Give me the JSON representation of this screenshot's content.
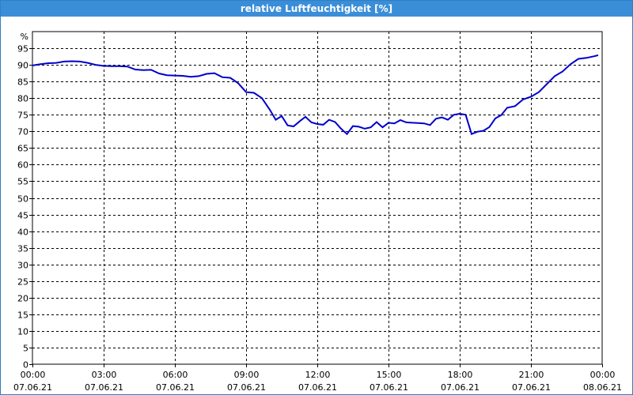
{
  "window": {
    "title": "relative Luftfeuchtigkeit [%]"
  },
  "chart_data": {
    "type": "line",
    "title": "relative Luftfeuchtigkeit [%]",
    "ylabel": "%",
    "ylim": [
      0,
      100
    ],
    "yticks": [
      0,
      5,
      10,
      15,
      20,
      25,
      30,
      35,
      40,
      45,
      50,
      55,
      60,
      65,
      70,
      75,
      80,
      85,
      90,
      95
    ],
    "xlim": [
      "07.06.21 00:00",
      "08.06.21 00:00"
    ],
    "xticks": [
      {
        "time": "00:00",
        "date": "07.06.21"
      },
      {
        "time": "03:00",
        "date": "07.06.21"
      },
      {
        "time": "06:00",
        "date": "07.06.21"
      },
      {
        "time": "09:00",
        "date": "07.06.21"
      },
      {
        "time": "12:00",
        "date": "07.06.21"
      },
      {
        "time": "15:00",
        "date": "07.06.21"
      },
      {
        "time": "18:00",
        "date": "07.06.21"
      },
      {
        "time": "21:00",
        "date": "07.06.21"
      },
      {
        "time": "00:00",
        "date": "08.06.21"
      }
    ],
    "grid": true,
    "colors": {
      "line": "#0000cc",
      "grid": "#000000"
    },
    "series": [
      {
        "x": [
          "00:00",
          "00:20",
          "00:40",
          "01:00",
          "01:20",
          "01:40",
          "02:00",
          "02:20",
          "02:40",
          "03:00",
          "03:20",
          "03:40",
          "04:00",
          "04:20",
          "04:40",
          "05:00",
          "05:20",
          "05:40",
          "06:00",
          "06:20",
          "06:40",
          "07:00",
          "07:20",
          "07:40",
          "08:00",
          "08:20",
          "08:40",
          "09:00",
          "09:20",
          "09:40",
          "10:00",
          "10:15",
          "10:30",
          "10:45",
          "11:00",
          "11:15",
          "11:30",
          "11:45",
          "12:00",
          "12:15",
          "12:30",
          "12:45",
          "13:00",
          "13:15",
          "13:30",
          "13:45",
          "14:00",
          "14:15",
          "14:30",
          "14:45",
          "15:00",
          "15:15",
          "15:30",
          "15:45",
          "16:00",
          "16:15",
          "16:30",
          "16:45",
          "17:00",
          "17:15",
          "17:30",
          "17:45",
          "18:00",
          "18:15",
          "18:30",
          "18:45",
          "19:00",
          "19:15",
          "19:30",
          "19:45",
          "20:00",
          "20:20",
          "20:40",
          "21:00",
          "21:20",
          "21:40",
          "22:00",
          "22:20",
          "22:40",
          "23:00",
          "23:20",
          "23:40",
          "23:50"
        ],
        "y": [
          89.8,
          90.2,
          90.5,
          90.6,
          91.0,
          91.1,
          91.0,
          90.6,
          90.0,
          89.7,
          89.6,
          89.6,
          89.5,
          88.6,
          88.4,
          88.5,
          87.4,
          86.9,
          86.8,
          86.7,
          86.4,
          86.6,
          87.3,
          87.5,
          86.3,
          86.1,
          84.5,
          81.8,
          81.6,
          80.0,
          76.5,
          73.5,
          74.6,
          71.8,
          71.5,
          73.0,
          74.4,
          72.7,
          72.2,
          72.0,
          73.5,
          72.8,
          70.8,
          69.2,
          71.6,
          71.4,
          70.8,
          71.2,
          72.8,
          71.2,
          72.6,
          72.4,
          73.4,
          72.7,
          72.6,
          72.5,
          72.4,
          71.9,
          73.8,
          74.2,
          73.5,
          75.0,
          75.3,
          75.0,
          69.2,
          69.9,
          70.2,
          71.3,
          73.9,
          74.9,
          77.1,
          77.6,
          79.6,
          80.4,
          81.8,
          84.2,
          86.6,
          88.0,
          90.2,
          91.8,
          92.1,
          92.6,
          92.9
        ]
      }
    ]
  }
}
